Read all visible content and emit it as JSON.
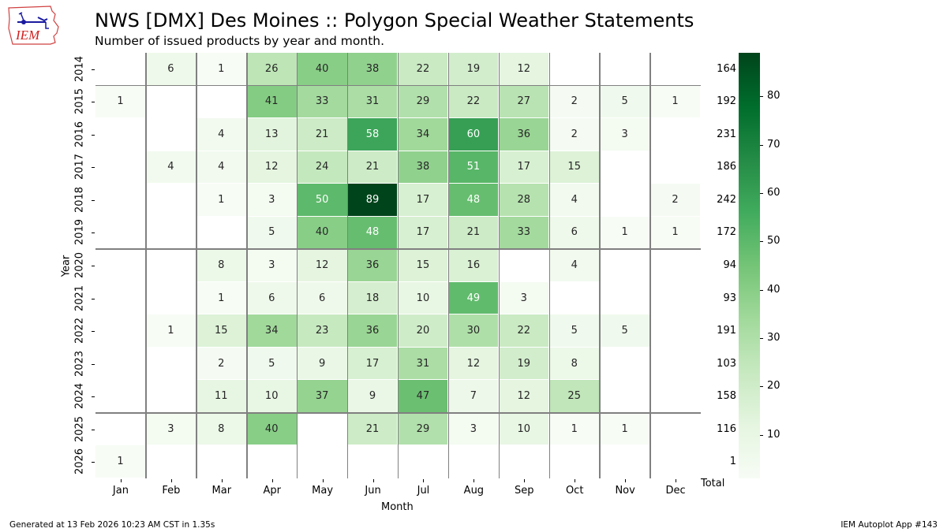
{
  "header": {
    "title": "NWS [DMX] Des Moines :: Polygon Special Weather Statements",
    "subtitle": "Number of issued products by year and month.",
    "logo_text": "IEM"
  },
  "footer": {
    "generated": "Generated at 13 Feb 2026 10:23 AM CST in 1.35s",
    "app": "IEM Autoplot App #143"
  },
  "chart_data": {
    "type": "heatmap",
    "title": "NWS [DMX] Des Moines :: Polygon Special Weather Statements",
    "subtitle": "Number of issued products by year and month.",
    "xlabel": "Month",
    "ylabel": "Year",
    "x": [
      "Jan",
      "Feb",
      "Mar",
      "Apr",
      "May",
      "Jun",
      "Jul",
      "Aug",
      "Sep",
      "Oct",
      "Nov",
      "Dec"
    ],
    "y": [
      "2014",
      "2015",
      "2016",
      "2017",
      "2018",
      "2019",
      "2020",
      "2021",
      "2022",
      "2023",
      "2024",
      "2025",
      "2026"
    ],
    "values": [
      [
        null,
        6,
        1,
        26,
        40,
        38,
        22,
        19,
        12,
        null,
        null,
        null
      ],
      [
        1,
        null,
        null,
        41,
        33,
        31,
        29,
        22,
        27,
        2,
        5,
        1
      ],
      [
        null,
        null,
        4,
        13,
        21,
        58,
        34,
        60,
        36,
        2,
        3,
        null
      ],
      [
        null,
        4,
        4,
        12,
        24,
        21,
        38,
        51,
        17,
        15,
        null,
        null
      ],
      [
        null,
        null,
        1,
        3,
        50,
        89,
        17,
        48,
        28,
        4,
        null,
        2
      ],
      [
        null,
        null,
        null,
        5,
        40,
        48,
        17,
        21,
        33,
        6,
        1,
        1
      ],
      [
        null,
        null,
        8,
        3,
        12,
        36,
        15,
        16,
        null,
        4,
        null,
        null
      ],
      [
        null,
        null,
        1,
        6,
        6,
        18,
        10,
        49,
        3,
        null,
        null,
        null
      ],
      [
        null,
        1,
        15,
        34,
        23,
        36,
        20,
        30,
        22,
        5,
        5,
        null
      ],
      [
        null,
        null,
        2,
        5,
        9,
        17,
        31,
        12,
        19,
        8,
        null,
        null
      ],
      [
        null,
        null,
        11,
        10,
        37,
        9,
        47,
        7,
        12,
        25,
        null,
        null
      ],
      [
        null,
        3,
        8,
        40,
        null,
        21,
        29,
        3,
        10,
        1,
        1,
        null
      ],
      [
        1,
        null,
        null,
        null,
        null,
        null,
        null,
        null,
        null,
        null,
        null,
        null
      ]
    ],
    "row_totals_label": "Total",
    "row_totals": [
      164,
      192,
      231,
      186,
      242,
      172,
      94,
      93,
      191,
      103,
      158,
      116,
      1
    ],
    "colormap": "Greens",
    "vmin": 1,
    "vmax": 89,
    "colorbar_ticks": [
      10,
      20,
      30,
      40,
      50,
      60,
      70,
      80
    ],
    "separator_lines_after_years": [
      "2014",
      "2019",
      "2024"
    ],
    "vertical_separators_between_months": true
  }
}
